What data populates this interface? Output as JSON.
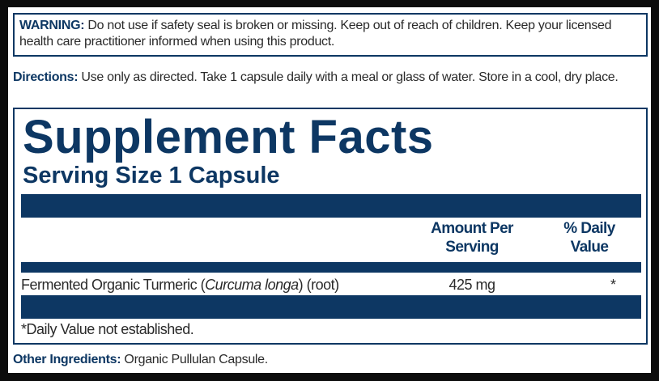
{
  "warning": {
    "label": "WARNING:",
    "text": " Do not use if safety seal is broken or missing. Keep out of reach of children. Keep your licensed health care practitioner informed when using this product."
  },
  "directions": {
    "label": "Directions:",
    "text": " Use only as directed. Take 1 capsule daily with a meal or glass of water. Store in a cool, dry place."
  },
  "facts": {
    "title": "Supplement Facts",
    "serving_size": "Serving Size 1 Capsule",
    "col_amount_1": "Amount Per",
    "col_amount_2": "Serving",
    "col_dv_1": "% Daily",
    "col_dv_2": "Value",
    "rows": [
      {
        "name_pre": "Fermented Organic Turmeric (",
        "name_latin": "Curcuma longa",
        "name_post": ") (root)",
        "amount": "425 mg",
        "dv": "*"
      }
    ],
    "footnote": "*Daily Value not established."
  },
  "other_ingredients": {
    "label": "Other Ingredients:",
    "text": " Organic Pullulan Capsule."
  },
  "colors": {
    "navy": "#0d3763",
    "background": "#0c0c0c"
  }
}
